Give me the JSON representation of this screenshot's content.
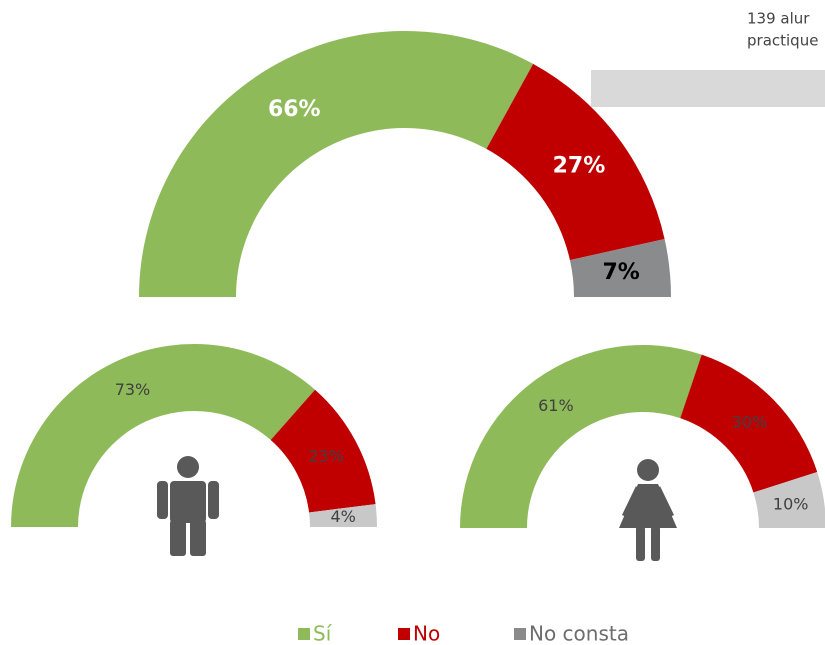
{
  "note_lines": [
    "139 alur",
    "practique"
  ],
  "legend": {
    "names": [
      "Sí",
      "No",
      "No consta"
    ],
    "colors": [
      "#8fba5a",
      "#c00000",
      "#8a8a8a"
    ]
  },
  "chart_data": [
    {
      "type": "donut",
      "values": [
        66,
        27,
        7
      ],
      "value_labels": [
        "66%",
        "27%",
        "7%"
      ],
      "colors": [
        "#8fba5a",
        "#c00000",
        "#898b8d"
      ],
      "label_colors": [
        "#ffffff",
        "#ffffff",
        "#000000"
      ]
    },
    {
      "type": "donut",
      "values": [
        73,
        23,
        4
      ],
      "value_labels": [
        "73%",
        "23%",
        "4%"
      ],
      "colors": [
        "#8fba5a",
        "#c00000",
        "#c8c8c8"
      ],
      "label_colors": [
        "#404040",
        "#404040",
        "#404040"
      ]
    },
    {
      "type": "donut",
      "values": [
        61,
        30,
        10
      ],
      "value_labels": [
        "61%",
        "30%",
        "10%"
      ],
      "colors": [
        "#8fba5a",
        "#c00000",
        "#c8c8c8"
      ],
      "label_colors": [
        "#404040",
        "#404040",
        "#404040"
      ]
    }
  ]
}
